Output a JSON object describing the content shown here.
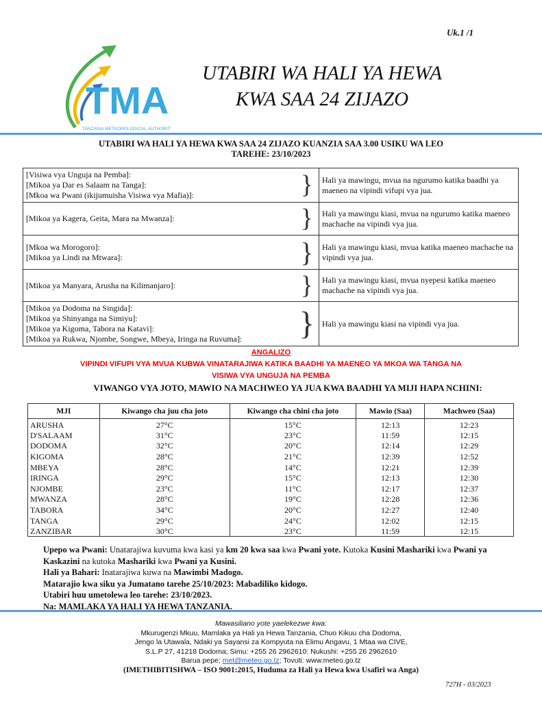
{
  "page_number": "Uk.1 /1",
  "logo": {
    "text": "TMA",
    "subtitle": "TANZANIA METEOROLOGICAL AUTHORITY"
  },
  "title_line1": "UTABIRI WA HALI YA HEWA",
  "title_line2": "KWA SAA 24 ZIJAZO",
  "heading_line1": "UTABIRI WA HALI YA HEWA KWA SAA 24 ZIJAZO KUANZIA SAA 3.00 USIKU WA LEO",
  "heading_line2": "TAREHE: 23/10/2023",
  "forecast": [
    {
      "regions": [
        "[Visiwa vya Unguja na Pemba]:",
        "[Mikoa ya Dar es Salaam na Tanga]:",
        "[Mkoa wa Pwani (ikijumuisha Visiwa vya Mafia)]:"
      ],
      "text": "Hali ya mawingu, mvua na ngurumo katika baadhi ya maeneo na vipindi vifupi vya jua."
    },
    {
      "regions": [
        "[Mikoa ya Kagera, Geita, Mara na Mwanza]:"
      ],
      "text": "Hali ya mawingu kiasi, mvua na ngurumo katika maeneo machache na vipindi vya jua."
    },
    {
      "regions": [
        "[Mkoa wa Morogoro]:",
        "[Mikoa ya Lindi na Mtwara]:"
      ],
      "text": "Hali ya mawingu kiasi, mvua katika maeneo machache na vipindi vya jua."
    },
    {
      "regions": [
        "[Mikoa ya Manyara, Arusha na Kilimanjaro]:"
      ],
      "text": "Hali ya mawingu kiasi, mvua nyepesi katika maeneo machache na vipindi vya jua."
    },
    {
      "regions": [
        "[Mikoa ya Dodoma na Singida]:",
        "[Mikoa ya Shinyanga na Simiyu]:",
        "[Mikoa ya Kigoma, Tabora na Katavi]:",
        "[Mikoa ya Rukwa, Njombe, Songwe, Mbeya, Iringa na Ruvuma]:"
      ],
      "text": "Hali ya mawingu kiasi na vipindi vya jua."
    }
  ],
  "angalizo": {
    "title": "ANGALIZO",
    "line1": "VIPINDI VIFUPI VYA MVUA KUBWA VINATARAJIWA KATIKA BAADHI YA MAENEO YA MKOA WA TANGA NA",
    "line2": "VISIWA VYA UNGUJA NA PEMBA",
    "color": "#e00000"
  },
  "temps_heading": "VIWANGO VYA JOTO, MAWIO NA MACHWEO YA JUA KWA BAADHI YA MIJI HAPA NCHINI:",
  "temps": {
    "headers": [
      "MJI",
      "Kiwango cha juu cha joto",
      "Kiwango cha chini cha joto",
      "Mawio (Saa)",
      "Machweo (Saa)"
    ],
    "rows": [
      [
        "ARUSHA",
        "27°C",
        "15°C",
        "12:13",
        "12:23"
      ],
      [
        "D'SALAAM",
        "31°C",
        "23°C",
        "11:59",
        "12:15"
      ],
      [
        "DODOMA",
        "32°C",
        "20°C",
        "12:14",
        "12:29"
      ],
      [
        "KIGOMA",
        "28°C",
        "21°C",
        "12:39",
        "12:52"
      ],
      [
        "MBEYA",
        "28°C",
        "14°C",
        "12:21",
        "12:39"
      ],
      [
        "IRINGA",
        "29°C",
        "15°C",
        "12:13",
        "12:30"
      ],
      [
        "NJOMBE",
        "23°C",
        "11°C",
        "12:17",
        "12:37"
      ],
      [
        "MWANZA",
        "28°C",
        "19°C",
        "12:28",
        "12:36"
      ],
      [
        "TABORA",
        "34°C",
        "20°C",
        "12:27",
        "12:40"
      ],
      [
        "TANGA",
        "29°C",
        "24°C",
        "12:02",
        "12:15"
      ],
      [
        "ZANZIBAR",
        "30°C",
        "23°C",
        "11:59",
        "12:15"
      ]
    ]
  },
  "notes": {
    "upepo_label": "Upepo wa Pwani:",
    "upepo_1": " Unatarajiwa kuvuma kwa kasi ya ",
    "upepo_2": "km 20 kwa saa",
    "upepo_3": " kwa ",
    "upepo_4": "Pwani yote.",
    "upepo_5": " Kutoka ",
    "upepo_6": "Kusini Mashariki",
    "upepo_7": " kwa ",
    "upepo_8": "Pwani ya Kaskazini",
    "upepo_9": " na kutoka ",
    "upepo_10": "Mashariki",
    "upepo_11": " kwa ",
    "upepo_12": "Pwani ya Kusini.",
    "bahari_label": "Hali ya Bahari:",
    "bahari_1": " Inatarajiwa kuwa na ",
    "bahari_2": "Mawimbi Madogo.",
    "matarajio": "Matarajio kwa siku ya Jumatano tarehe 25/10/2023: Mabadiliko kidogo.",
    "issued": "Utabiri huu umetolewa leo tarehe: 23/10/2023.",
    "by": "Na: MAMLAKA YA HALI YA HEWA TANZANIA."
  },
  "footer": {
    "intro": "Mawasiliano yote yaelekezwe kwa:",
    "line1": "Mkurugenzi Mkuu, Mamlaka ya Hali ya Hewa Tanzania, Chuo Kikuu cha Dodoma,",
    "line2": "Jengo la Utawala, Ndaki ya Sayansi za Kompyuta na Elimu Angavu, 1 Mtaa wa CIVE,",
    "line3": "S.L.P 27, 41218 Dodoma; Simu: +255 26 2962610: Nukushi: +255 26 2962610",
    "email_label": "Barua pepe; ",
    "email": "met@meteo.go.tz",
    "web": "; Tovuti: www.meteo.go.tz",
    "iso": "(IMETHIBITISHWA – ISO 9001:2015, Huduma za Hali ya Hewa kwa Usafiri wa Anga)"
  },
  "form_code": "727H - 03/2023"
}
